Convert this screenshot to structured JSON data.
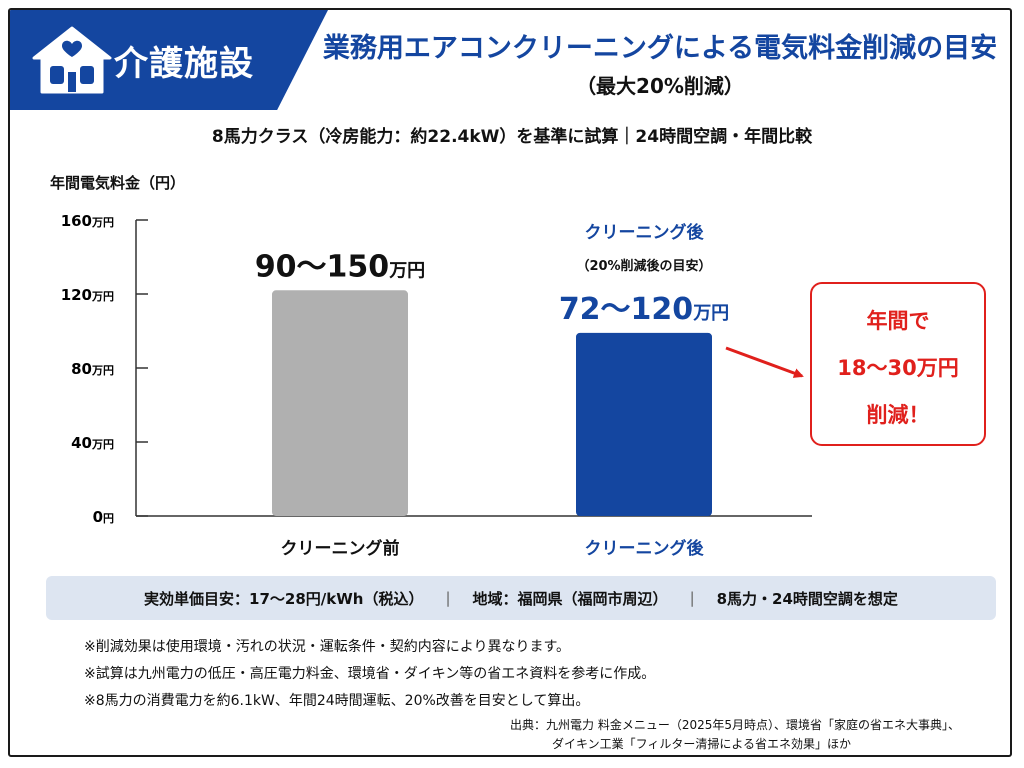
{
  "banner": {
    "label": "介護施設",
    "icon": "house-icon",
    "color": "#1446a0"
  },
  "header": {
    "title": "業務用エアコンクリーニングによる電気料金削減の目安",
    "subtitle": "（最大20%削減）"
  },
  "basis": "8馬力クラス（冷房能力：約22.4kW）を基準に試算｜24時間空調・年間比較",
  "chart_data": {
    "type": "bar",
    "ylabel": "年間電気料金（円）",
    "ylim": [
      0,
      160
    ],
    "yticks": [
      {
        "value": 0,
        "num": "0",
        "unit": "円"
      },
      {
        "value": 40,
        "num": "40",
        "unit": "万円"
      },
      {
        "value": 80,
        "num": "80",
        "unit": "万円"
      },
      {
        "value": 120,
        "num": "120",
        "unit": "万円"
      },
      {
        "value": 160,
        "num": "160",
        "unit": "万円"
      }
    ],
    "categories": [
      "クリーニング前",
      "クリーニング後"
    ],
    "values": [
      122,
      99
    ],
    "colors": [
      "#b0b0b0",
      "#1446a0"
    ],
    "data_labels": [
      {
        "main": "90～150",
        "unit": "万円"
      },
      {
        "main": "72～120",
        "unit": "万円"
      }
    ],
    "annotation": {
      "title": "クリーニング後",
      "sub": "（20%削減後の目安）"
    },
    "grid": false
  },
  "savings": {
    "line1": "年間で",
    "line2": "18～30万円",
    "line3": "削減！",
    "color": "#e0201c"
  },
  "infobar": {
    "rate": "実効単価目安：17～28円/kWh（税込）",
    "region": "地域：福岡県（福岡市周辺）",
    "condition": "8馬力・24時間空調を想定"
  },
  "notes": [
    "※削減効果は使用環境・汚れの状況・運転条件・契約内容により異なります。",
    "※試算は九州電力の低圧・高圧電力料金、環境省・ダイキン等の省エネ資料を参考に作成。",
    "※8馬力の消費電力を約6.1kW、年間24時間運転、20%改善を目安として算出。"
  ],
  "source": {
    "line1": "出典：九州電力 料金メニュー（2025年5月時点）、環境省「家庭の省エネ大事典」、",
    "line2": "ダイキン工業「フィルター清掃による省エネ効果」ほか"
  }
}
